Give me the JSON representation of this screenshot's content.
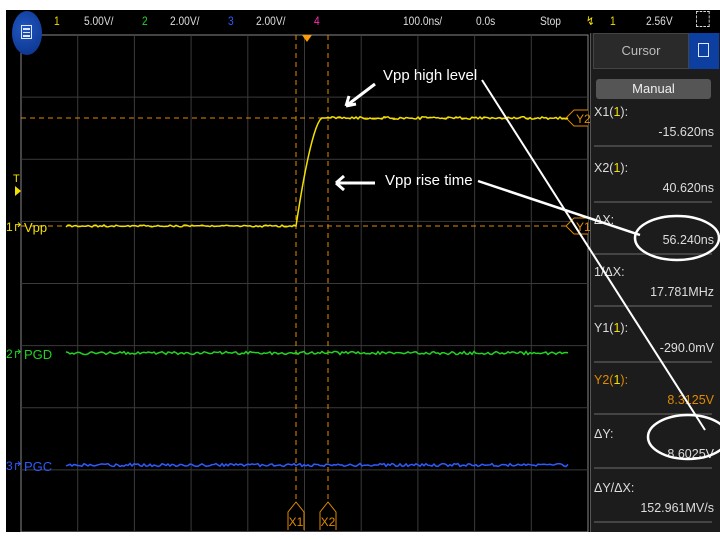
{
  "topbar": {
    "ch1_num": "1",
    "ch1_scale": "5.00V/",
    "ch2_num": "2",
    "ch2_scale": "2.00V/",
    "ch3_num": "3",
    "ch3_scale": "2.00V/",
    "ch4_num": "4",
    "timebase": "100.0ns/",
    "delay": "0.0s",
    "run_state": "Stop",
    "trigger_channel": "1",
    "trigger_level": "2.56V"
  },
  "channels": [
    {
      "num": "1",
      "label": "Vpp",
      "color": "#f2e000"
    },
    {
      "num": "2",
      "label": "PGD",
      "color": "#22d422"
    },
    {
      "num": "3",
      "label": "PGC",
      "color": "#2d5bff"
    }
  ],
  "trigger_marker": "T",
  "cursors": {
    "x1": "X1",
    "x2": "X2",
    "y1": "Y1",
    "y2": "Y2",
    "color": "#e08a00"
  },
  "panel": {
    "tab": "Cursor",
    "mode": "Manual",
    "readouts": [
      {
        "label": "X1",
        "src": "1",
        "value": "-15.620ns"
      },
      {
        "label": "X2",
        "src": "1",
        "value": "40.620ns"
      },
      {
        "label": "ΔX:",
        "value": "56.240ns"
      },
      {
        "label": "1/ΔX:",
        "value": "17.781MHz"
      },
      {
        "label": "Y1",
        "src": "1",
        "value": "-290.0mV"
      },
      {
        "label": "Y2",
        "src": "1",
        "value": "8.3125V"
      },
      {
        "label": "ΔY:",
        "value": "8.6025V"
      },
      {
        "label": "ΔY/ΔX:",
        "value": "152.961MV/s"
      }
    ]
  },
  "annotations": {
    "high_level": "Vpp high level",
    "rise_time": "Vpp rise time"
  }
}
